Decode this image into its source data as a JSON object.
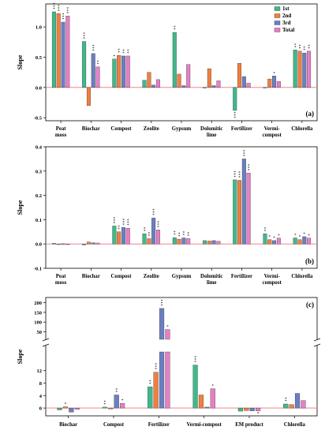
{
  "colors": {
    "1st": "#3fb98a",
    "2nd": "#f07f3e",
    "3rd": "#6b7fc2",
    "Total": "#e67fc6",
    "zero_line": "#f07080"
  },
  "chart_data": [
    {
      "type": "bar",
      "panel_label": "(a)",
      "ylabel": "Slope",
      "ylim": [
        -0.55,
        1.38
      ],
      "yticks": [
        {
          "v": -0.5,
          "label": "-0.5"
        },
        {
          "v": 0.0,
          "label": "0.0"
        },
        {
          "v": 0.5,
          "label": "0.5"
        },
        {
          "v": 1.0,
          "label": "1.0"
        }
      ],
      "legend": [
        "1st",
        "2nd",
        "3rd",
        "Total"
      ],
      "legend_position": "top-right",
      "categories": [
        "Peat moss",
        "Biochar",
        "Compost",
        "Zeolite",
        "Gypsum",
        "Dolomitic lime",
        "Fertilizer",
        "Vermi-compost",
        "Chlorella"
      ],
      "series": [
        {
          "name": "1st",
          "values": [
            1.25,
            0.76,
            0.47,
            0.12,
            0.91,
            -0.01,
            -0.38,
            -0.01,
            0.62
          ]
        },
        {
          "name": "2nd",
          "values": [
            1.22,
            -0.3,
            0.53,
            0.25,
            0.22,
            0.31,
            0.4,
            0.14,
            0.6
          ]
        },
        {
          "name": "3rd",
          "values": [
            1.08,
            0.56,
            0.52,
            0.04,
            0.03,
            0.03,
            0.18,
            0.19,
            0.57
          ]
        },
        {
          "name": "Total",
          "values": [
            1.18,
            0.34,
            0.52,
            0.13,
            0.38,
            0.11,
            0.07,
            0.1,
            0.6
          ]
        }
      ],
      "annotations": [
        {
          "series": "1st",
          "cat": 0,
          "label": "***"
        },
        {
          "series": "2nd",
          "cat": 0,
          "label": "***"
        },
        {
          "series": "3rd",
          "cat": 0,
          "label": "***"
        },
        {
          "series": "Total",
          "cat": 0,
          "label": "***"
        },
        {
          "series": "1st",
          "cat": 1,
          "label": "***"
        },
        {
          "series": "3rd",
          "cat": 1,
          "label": "***"
        },
        {
          "series": "Total",
          "cat": 1,
          "label": "**"
        },
        {
          "series": "1st",
          "cat": 2,
          "label": "*"
        },
        {
          "series": "2nd",
          "cat": 2,
          "label": "**"
        },
        {
          "series": "3rd",
          "cat": 2,
          "label": "**"
        },
        {
          "series": "Total",
          "cat": 2,
          "label": "**"
        },
        {
          "series": "1st",
          "cat": 4,
          "label": "**"
        },
        {
          "series": "1st",
          "cat": 6,
          "label": "***"
        },
        {
          "series": "3rd",
          "cat": 7,
          "label": "*"
        },
        {
          "series": "1st",
          "cat": 8,
          "label": "**"
        },
        {
          "series": "2nd",
          "cat": 8,
          "label": "**"
        },
        {
          "series": "3rd",
          "cat": 8,
          "label": "**"
        },
        {
          "series": "Total",
          "cat": 8,
          "label": "**"
        }
      ]
    },
    {
      "type": "bar",
      "panel_label": "(b)",
      "ylabel": "Slope",
      "ylim": [
        -0.1,
        0.4
      ],
      "yticks": [
        {
          "v": -0.1,
          "label": "-0.1"
        },
        {
          "v": 0.0,
          "label": "0.0"
        },
        {
          "v": 0.1,
          "label": "0.1"
        },
        {
          "v": 0.2,
          "label": "0.2"
        },
        {
          "v": 0.3,
          "label": "0.3"
        },
        {
          "v": 0.4,
          "label": "0.4"
        }
      ],
      "categories": [
        "Peat moss",
        "Biochar",
        "Compost",
        "Zeolite",
        "Gypsum",
        "Dolomitic lime",
        "Fertilizer",
        "Vermi-compost",
        "Chlorella"
      ],
      "series": [
        {
          "name": "1st",
          "values": [
            0.003,
            -0.004,
            0.074,
            0.042,
            0.026,
            0.014,
            0.264,
            0.042,
            0.025
          ]
        },
        {
          "name": "2nd",
          "values": [
            -0.002,
            0.008,
            0.05,
            0.022,
            0.02,
            0.012,
            0.262,
            0.018,
            0.018
          ]
        },
        {
          "name": "3rd",
          "values": [
            0.001,
            0.005,
            0.068,
            0.107,
            0.025,
            0.014,
            0.35,
            0.014,
            0.03
          ]
        },
        {
          "name": "Total",
          "values": [
            -0.001,
            0.004,
            0.065,
            0.058,
            0.022,
            0.011,
            0.292,
            0.024,
            0.024
          ]
        }
      ],
      "annotations": [
        {
          "series": "1st",
          "cat": 2,
          "label": "***"
        },
        {
          "series": "2nd",
          "cat": 2,
          "label": "**"
        },
        {
          "series": "3rd",
          "cat": 2,
          "label": "***"
        },
        {
          "series": "Total",
          "cat": 2,
          "label": "***"
        },
        {
          "series": "1st",
          "cat": 3,
          "label": "**"
        },
        {
          "series": "2nd",
          "cat": 3,
          "label": "**"
        },
        {
          "series": "3rd",
          "cat": 3,
          "label": "***"
        },
        {
          "series": "Total",
          "cat": 3,
          "label": "***"
        },
        {
          "series": "1st",
          "cat": 4,
          "label": "**"
        },
        {
          "series": "2nd",
          "cat": 4,
          "label": "**"
        },
        {
          "series": "3rd",
          "cat": 4,
          "label": "**"
        },
        {
          "series": "Total",
          "cat": 4,
          "label": "**"
        },
        {
          "series": "1st",
          "cat": 6,
          "label": "***"
        },
        {
          "series": "2nd",
          "cat": 6,
          "label": "***"
        },
        {
          "series": "3rd",
          "cat": 6,
          "label": "***"
        },
        {
          "series": "Total",
          "cat": 6,
          "label": "***"
        },
        {
          "series": "1st",
          "cat": 7,
          "label": "**"
        },
        {
          "series": "2nd",
          "cat": 7,
          "label": "*"
        },
        {
          "series": "3rd",
          "cat": 7,
          "label": "*"
        },
        {
          "series": "Total",
          "cat": 7,
          "label": "*"
        },
        {
          "series": "1st",
          "cat": 8,
          "label": "*"
        },
        {
          "series": "2nd",
          "cat": 8,
          "label": "*"
        },
        {
          "series": "3rd",
          "cat": 8,
          "label": "*"
        },
        {
          "series": "Total",
          "cat": 8,
          "label": "*"
        }
      ]
    },
    {
      "type": "bar",
      "panel_label": "(c)",
      "ylabel": "Slope",
      "broken_axis": true,
      "lower_ylim": [
        -2,
        18
      ],
      "upper_ylim": [
        40,
        210
      ],
      "lower_yticks": [
        {
          "v": 0,
          "label": "0"
        },
        {
          "v": 4,
          "label": "4"
        },
        {
          "v": 8,
          "label": "8"
        },
        {
          "v": 12,
          "label": "12"
        }
      ],
      "upper_yticks": [
        {
          "v": 50,
          "label": "50"
        },
        {
          "v": 100,
          "label": "100"
        },
        {
          "v": 150,
          "label": "150"
        },
        {
          "v": 200,
          "label": "200"
        }
      ],
      "categories": [
        "Biochar",
        "Compost",
        "Fertilizer",
        "Vermi-compost",
        "EM product",
        "Chlorella"
      ],
      "series": [
        {
          "name": "1st",
          "values": [
            -0.6,
            0.3,
            6.8,
            13.8,
            -1.0,
            1.3
          ]
        },
        {
          "name": "2nd",
          "values": [
            0.4,
            -0.3,
            11.5,
            4.2,
            -0.8,
            1.1
          ]
        },
        {
          "name": "3rd",
          "values": [
            -1.3,
            4.2,
            170.0,
            0.3,
            -0.9,
            4.7
          ]
        },
        {
          "name": "Total",
          "values": [
            -0.4,
            1.5,
            62.0,
            6.2,
            -0.9,
            2.4
          ]
        }
      ],
      "annotations": [
        {
          "series": "2nd",
          "cat": 0,
          "label": "*"
        },
        {
          "series": "1st",
          "cat": 1,
          "label": "**"
        },
        {
          "series": "3rd",
          "cat": 1,
          "label": "**"
        },
        {
          "series": "Total",
          "cat": 1,
          "label": "*"
        },
        {
          "series": "1st",
          "cat": 2,
          "label": "**"
        },
        {
          "series": "2nd",
          "cat": 2,
          "label": "***"
        },
        {
          "series": "3rd",
          "cat": 2,
          "label": "***"
        },
        {
          "series": "Total",
          "cat": 2,
          "label": "*"
        },
        {
          "series": "1st",
          "cat": 3,
          "label": "***"
        },
        {
          "series": "Total",
          "cat": 3,
          "label": "*"
        },
        {
          "series": "Total",
          "cat": 4,
          "label": "*"
        },
        {
          "series": "1st",
          "cat": 5,
          "label": "**"
        }
      ]
    }
  ]
}
